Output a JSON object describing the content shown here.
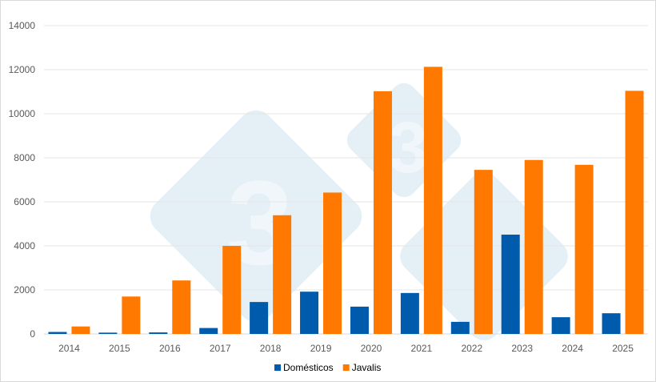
{
  "chart_data": {
    "type": "bar",
    "title": "",
    "xlabel": "",
    "ylabel": "",
    "categories": [
      "2014",
      "2015",
      "2016",
      "2017",
      "2018",
      "2019",
      "2020",
      "2021",
      "2022",
      "2023",
      "2024",
      "2025"
    ],
    "series": [
      {
        "name": "Domésticos",
        "color": "#005bac",
        "values": [
          90,
          60,
          70,
          270,
          1450,
          1920,
          1240,
          1860,
          550,
          4510,
          760,
          940
        ]
      },
      {
        "name": "Javalis",
        "color": "#ff7800",
        "values": [
          340,
          1700,
          2430,
          4000,
          5390,
          6420,
          11020,
          12130,
          7450,
          7900,
          7680,
          11040
        ]
      }
    ],
    "ylim": [
      0,
      14000
    ],
    "yticks": [
      0,
      2000,
      4000,
      6000,
      8000,
      10000,
      12000,
      14000
    ],
    "grid": true,
    "legend": "bottom",
    "watermark": "3"
  }
}
